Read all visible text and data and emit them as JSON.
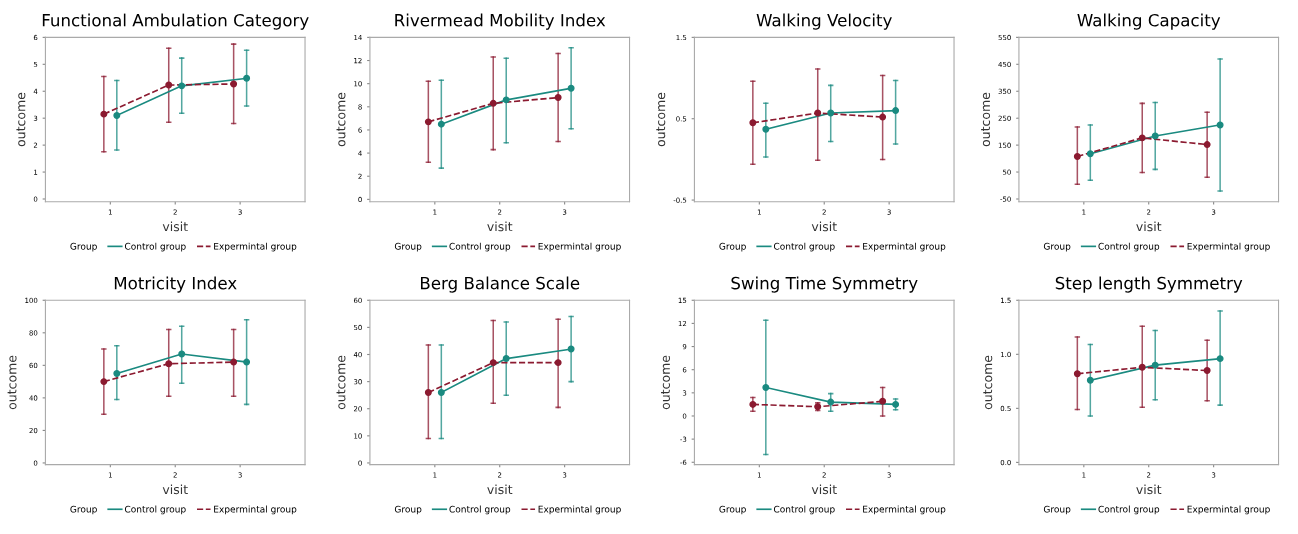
{
  "chart_data": [
    {
      "type": "line",
      "title": "Functional Ambulation Category",
      "xlabel": "visit",
      "ylabel": "outcome",
      "legend_title": "Group",
      "legend": "bottom",
      "grid": false,
      "marker": "circle",
      "xlim": [
        0,
        4
      ],
      "xticks": [
        1,
        2,
        3
      ],
      "ylim": [
        -0.1,
        6
      ],
      "yticks": [
        0,
        1,
        2,
        3,
        4,
        5,
        6
      ],
      "series": [
        {
          "name": "Control group",
          "color": "#1a8a80",
          "line_style": "solid",
          "x": [
            1.1,
            2.1,
            3.1
          ],
          "values": [
            3.1,
            4.2,
            4.48
          ],
          "errors": [
            [
              1.82,
              4.4
            ],
            [
              3.18,
              5.23
            ],
            [
              3.45,
              5.52
            ]
          ]
        },
        {
          "name": "Expermintal group",
          "color": "#8b1a30",
          "line_style": "dashed",
          "x": [
            0.9,
            1.9,
            2.9
          ],
          "values": [
            3.15,
            4.23,
            4.27
          ],
          "errors": [
            [
              1.75,
              4.55
            ],
            [
              2.85,
              5.6
            ],
            [
              2.8,
              5.75
            ]
          ]
        }
      ]
    },
    {
      "type": "line",
      "title": "Rivermead Mobility Index",
      "xlabel": "visit",
      "ylabel": "outcome",
      "legend_title": "Group",
      "legend": "bottom",
      "grid": false,
      "marker": "circle",
      "xlim": [
        0,
        4
      ],
      "xticks": [
        1,
        2,
        3
      ],
      "ylim": [
        -0.2,
        14
      ],
      "yticks": [
        0,
        2,
        4,
        6,
        8,
        10,
        12,
        14
      ],
      "series": [
        {
          "name": "Control group",
          "color": "#1a8a80",
          "line_style": "solid",
          "x": [
            1.1,
            2.1,
            3.1
          ],
          "values": [
            6.5,
            8.6,
            9.6
          ],
          "errors": [
            [
              2.7,
              10.3
            ],
            [
              4.9,
              12.2
            ],
            [
              6.1,
              13.1
            ]
          ]
        },
        {
          "name": "Expermintal group",
          "color": "#8b1a30",
          "line_style": "dashed",
          "x": [
            0.9,
            1.9,
            2.9
          ],
          "values": [
            6.7,
            8.3,
            8.8
          ],
          "errors": [
            [
              3.2,
              10.2
            ],
            [
              4.3,
              12.3
            ],
            [
              5.0,
              12.6
            ]
          ]
        }
      ]
    },
    {
      "type": "line",
      "title": "Walking Velocity",
      "xlabel": "visit",
      "ylabel": "outcome",
      "legend_title": "Group",
      "legend": "bottom",
      "grid": false,
      "marker": "circle",
      "xlim": [
        0,
        4
      ],
      "xticks": [
        1,
        2,
        3
      ],
      "ylim": [
        -0.52,
        1.5
      ],
      "yticks": [
        -0.5,
        0.5,
        1.5
      ],
      "series": [
        {
          "name": "Control group",
          "color": "#1a8a80",
          "line_style": "solid",
          "x": [
            1.1,
            2.1,
            3.1
          ],
          "values": [
            0.37,
            0.57,
            0.6
          ],
          "errors": [
            [
              0.03,
              0.69
            ],
            [
              0.22,
              0.91
            ],
            [
              0.19,
              0.97
            ]
          ]
        },
        {
          "name": "Expermintal group",
          "color": "#8b1a30",
          "line_style": "dashed",
          "x": [
            0.9,
            1.9,
            2.9
          ],
          "values": [
            0.45,
            0.57,
            0.52
          ],
          "errors": [
            [
              -0.06,
              0.96
            ],
            [
              -0.01,
              1.11
            ],
            [
              0.0,
              1.03
            ]
          ]
        }
      ]
    },
    {
      "type": "line",
      "title": "Walking Capacity",
      "xlabel": "visit",
      "ylabel": "outcome",
      "legend_title": "Group",
      "legend": "bottom",
      "grid": false,
      "marker": "circle",
      "xlim": [
        0,
        4
      ],
      "xticks": [
        1,
        2,
        3
      ],
      "ylim": [
        -60,
        550
      ],
      "yticks": [
        -50,
        50,
        150,
        250,
        350,
        450,
        550
      ],
      "series": [
        {
          "name": "Control group",
          "color": "#1a8a80",
          "line_style": "solid",
          "x": [
            1.1,
            2.1,
            3.1
          ],
          "values": [
            118,
            184,
            225
          ],
          "errors": [
            [
              20,
              225
            ],
            [
              60,
              308
            ],
            [
              -20,
              470
            ]
          ]
        },
        {
          "name": "Expermintal group",
          "color": "#8b1a30",
          "line_style": "dashed",
          "x": [
            0.9,
            1.9,
            2.9
          ],
          "values": [
            108,
            177,
            152
          ],
          "errors": [
            [
              5,
              217
            ],
            [
              48,
              305
            ],
            [
              31,
              272
            ]
          ]
        }
      ]
    },
    {
      "type": "line",
      "title": "Motricity Index",
      "xlabel": "visit",
      "ylabel": "outcome",
      "legend_title": "Group",
      "legend": "bottom",
      "grid": false,
      "marker": "circle",
      "xlim": [
        0,
        4
      ],
      "xticks": [
        1,
        2,
        3
      ],
      "ylim": [
        -1,
        100
      ],
      "yticks": [
        0,
        20,
        40,
        60,
        80,
        100
      ],
      "series": [
        {
          "name": "Control group",
          "color": "#1a8a80",
          "line_style": "solid",
          "x": [
            1.1,
            2.1,
            3.1
          ],
          "values": [
            55,
            67,
            62
          ],
          "errors": [
            [
              39,
              72
            ],
            [
              49,
              84
            ],
            [
              36,
              88
            ]
          ]
        },
        {
          "name": "Expermintal group",
          "color": "#8b1a30",
          "line_style": "dashed",
          "x": [
            0.9,
            1.9,
            2.9
          ],
          "values": [
            50,
            61,
            62
          ],
          "errors": [
            [
              30,
              70
            ],
            [
              41,
              82
            ],
            [
              41,
              82
            ]
          ]
        }
      ]
    },
    {
      "type": "line",
      "title": "Berg Balance Scale",
      "xlabel": "visit",
      "ylabel": "outcome",
      "legend_title": "Group",
      "legend": "bottom",
      "grid": false,
      "marker": "circle",
      "xlim": [
        0,
        4
      ],
      "xticks": [
        1,
        2,
        3
      ],
      "ylim": [
        -0.6,
        60
      ],
      "yticks": [
        0,
        10,
        20,
        30,
        40,
        50,
        60
      ],
      "series": [
        {
          "name": "Control group",
          "color": "#1a8a80",
          "line_style": "solid",
          "x": [
            1.1,
            2.1,
            3.1
          ],
          "values": [
            26,
            38.5,
            42
          ],
          "errors": [
            [
              9,
              43.5
            ],
            [
              25,
              52
            ],
            [
              30,
              54
            ]
          ]
        },
        {
          "name": "Expermintal group",
          "color": "#8b1a30",
          "line_style": "dashed",
          "x": [
            0.9,
            1.9,
            2.9
          ],
          "values": [
            26,
            37,
            37
          ],
          "errors": [
            [
              9,
              43.5
            ],
            [
              22,
              52.5
            ],
            [
              20.5,
              53
            ]
          ]
        }
      ]
    },
    {
      "type": "line",
      "title": "Swing Time Symmetry",
      "xlabel": "visit",
      "ylabel": "outcome",
      "legend_title": "Group",
      "legend": "bottom",
      "grid": false,
      "marker": "circle",
      "xlim": [
        0,
        4
      ],
      "xticks": [
        1,
        2,
        3
      ],
      "ylim": [
        -6.3,
        15
      ],
      "yticks": [
        -6,
        -3,
        0,
        3,
        6,
        9,
        12,
        15
      ],
      "series": [
        {
          "name": "Control group",
          "color": "#1a8a80",
          "line_style": "solid",
          "x": [
            1.1,
            2.1,
            3.1
          ],
          "values": [
            3.7,
            1.8,
            1.5
          ],
          "errors": [
            [
              -5,
              12.4
            ],
            [
              0.6,
              2.9
            ],
            [
              0.8,
              2.2
            ]
          ]
        },
        {
          "name": "Expermintal group",
          "color": "#8b1a30",
          "line_style": "dashed",
          "x": [
            0.9,
            1.9,
            2.9
          ],
          "values": [
            1.5,
            1.2,
            1.9
          ],
          "errors": [
            [
              0.6,
              2.4
            ],
            [
              0.7,
              1.7
            ],
            [
              0.0,
              3.7
            ]
          ]
        }
      ]
    },
    {
      "type": "line",
      "title": "Step length Symmetry",
      "xlabel": "visit",
      "ylabel": "outcome",
      "legend_title": "Group",
      "legend": "bottom",
      "grid": false,
      "marker": "circle",
      "xlim": [
        0,
        4
      ],
      "xticks": [
        1,
        2,
        3
      ],
      "ylim": [
        -0.02,
        1.5
      ],
      "yticks": [
        {
          "value": 0,
          "label": "0.0"
        },
        0.5,
        {
          "value": 1,
          "label": "1.0"
        },
        1.5
      ],
      "series": [
        {
          "name": "Control group",
          "color": "#1a8a80",
          "line_style": "solid",
          "x": [
            1.1,
            2.1,
            3.1
          ],
          "values": [
            0.76,
            0.9,
            0.96
          ],
          "errors": [
            [
              0.43,
              1.09
            ],
            [
              0.58,
              1.22
            ],
            [
              0.53,
              1.4
            ]
          ]
        },
        {
          "name": "Expermintal group",
          "color": "#8b1a30",
          "line_style": "dashed",
          "x": [
            0.9,
            1.9,
            2.9
          ],
          "values": [
            0.82,
            0.88,
            0.85
          ],
          "errors": [
            [
              0.49,
              1.16
            ],
            [
              0.51,
              1.26
            ],
            [
              0.57,
              1.13
            ]
          ]
        }
      ]
    }
  ]
}
